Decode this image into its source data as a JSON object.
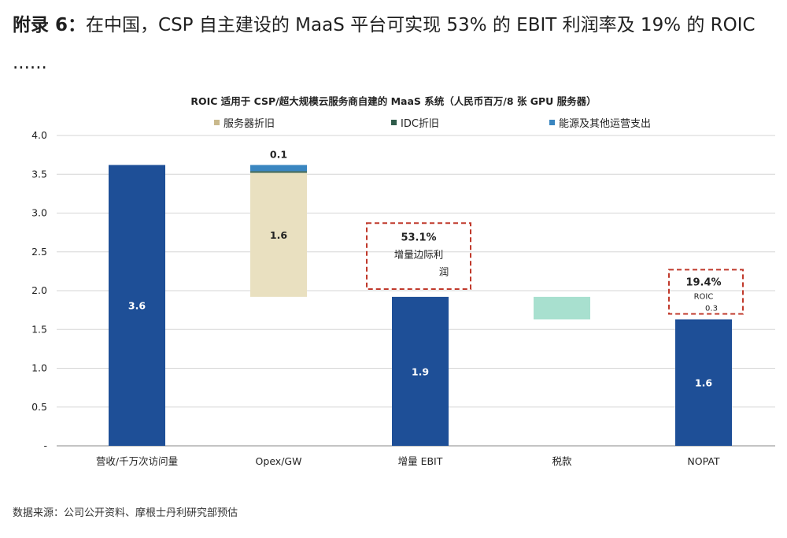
{
  "heading": {
    "prefix": "附录 6：",
    "text": "在中国，CSP 自主建设的 MaaS 平台可实现 53% 的 EBIT 利润率及 19% 的 ROIC ......"
  },
  "chart_data": {
    "type": "bar",
    "subtype": "waterfall",
    "title": "ROIC 适用于 CSP/超大规模云服务商自建的 MaaS 系统（人民币百万/8 张 GPU 服务器）",
    "xlabel": "",
    "ylabel": "",
    "ylim": [
      0,
      4.0
    ],
    "yticks": [
      "-",
      "0.5",
      "1.0",
      "1.5",
      "2.0",
      "2.5",
      "3.0",
      "3.5",
      "4.0"
    ],
    "grid": true,
    "legend_position": "top",
    "categories": [
      "营收/千万次访问量",
      "Opex/GW",
      "增量 EBIT",
      "税款",
      "NOPAT"
    ],
    "legend": [
      {
        "name": "服务器折旧",
        "color": "#c9b98c"
      },
      {
        "name": "IDC折旧",
        "color": "#2e5b4a"
      },
      {
        "name": "能源及其他运营支出",
        "color": "#3a86c0"
      }
    ],
    "bars": [
      {
        "category": "营收/千万次访问量",
        "base": 0,
        "value": 3.62,
        "color": "#1e4f97",
        "label": "3.6",
        "label_color": "#ffffff"
      },
      {
        "category": "Opex/GW",
        "base": 1.92,
        "value": 1.6,
        "color": "#e9e0c0",
        "label": "1.6",
        "label_color": "#222222"
      },
      {
        "category": "Opex/GW",
        "base": 3.52,
        "value": 0.02,
        "color": "#2e5b4a",
        "label": "",
        "label_color": "#222222"
      },
      {
        "category": "Opex/GW",
        "base": 3.54,
        "value": 0.08,
        "color": "#3a86c0",
        "label": "0.1",
        "label_color": "#222222",
        "label_above": true
      },
      {
        "category": "增量 EBIT",
        "base": 0,
        "value": 1.92,
        "color": "#1e4f97",
        "label": "1.9",
        "label_color": "#ffffff"
      },
      {
        "category": "税款",
        "base": 1.63,
        "value": 0.29,
        "color": "#a8e0cf",
        "label": "",
        "label_color": "#222222"
      },
      {
        "category": "NOPAT",
        "base": 0,
        "value": 1.63,
        "color": "#1e4f97",
        "label": "1.6",
        "label_color": "#ffffff"
      }
    ],
    "annotations": [
      {
        "category": "增量 EBIT",
        "y_top": 2.87,
        "y_bottom": 2.02,
        "lines": [
          "53.1%",
          "增量边际利",
          "润"
        ]
      },
      {
        "category": "NOPAT",
        "y_top": 2.27,
        "y_bottom": 1.7,
        "lines": [
          "19.4%",
          "ROIC",
          "0.3"
        ]
      }
    ]
  },
  "source": "数据来源：公司公开资料、摩根士丹利研究部预估"
}
